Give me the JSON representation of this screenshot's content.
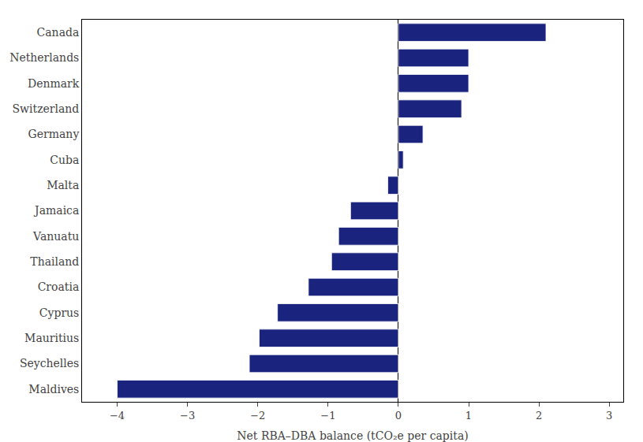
{
  "chart_data": {
    "type": "bar",
    "orientation": "horizontal",
    "categories": [
      "Canada",
      "Netherlands",
      "Denmark",
      "Switzerland",
      "Germany",
      "Cuba",
      "Malta",
      "Jamaica",
      "Vanuatu",
      "Thailand",
      "Croatia",
      "Cyprus",
      "Mauritius",
      "Seychelles",
      "Maldives"
    ],
    "values": [
      2.1,
      1.0,
      1.0,
      0.9,
      0.35,
      0.07,
      -0.15,
      -0.68,
      -0.85,
      -0.95,
      -1.28,
      -1.72,
      -1.98,
      -2.12,
      -4.0
    ],
    "color": "#1a237e",
    "xlabel": "Net RBA–DBA balance (tCO₂e per capita)",
    "xlim": [
      -4.5,
      3.2
    ],
    "xticks": [
      {
        "value": -4,
        "label": "−4"
      },
      {
        "value": -3,
        "label": "−3"
      },
      {
        "value": -2,
        "label": "−2"
      },
      {
        "value": -1,
        "label": "−1"
      },
      0,
      1,
      2,
      3
    ],
    "grid": false
  }
}
